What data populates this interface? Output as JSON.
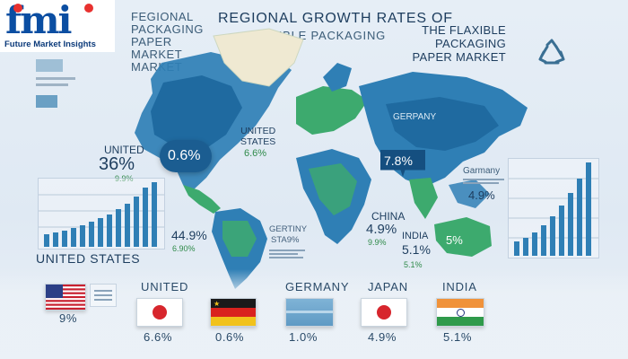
{
  "logo": {
    "mark": "fmi",
    "company": "Future Market Insights"
  },
  "headings": {
    "left": "Fegional Packaging Paper Market Market",
    "title_line1": "REGIONAL GROWTH RATES OF",
    "title_line2": "FLEXIBLE PACKAGING",
    "right": "THE FLAXIBLE PACKAGING PAPER MARKET"
  },
  "map_labels": {
    "us_bubble": "0.6%",
    "united_states_a": "UNITED",
    "united_states_b": "STATES",
    "united_states_val": "6.6%",
    "germany": "GERPANY",
    "china_bubble": "7.8%",
    "china": "CHINA",
    "china_val": "4.9%",
    "china_sub": "9.9%",
    "india": "INDIA",
    "india_val": "5.1%",
    "india_sub": "5.1%",
    "australia_bubble": "5%",
    "south_america": "GERTINY",
    "south_america_sub": "STA9%",
    "south_left_val": "44.9%",
    "south_left_sub": "6.90%"
  },
  "left_panel": {
    "label": "UNITED",
    "big": "36%",
    "small": "9.9%",
    "bottom_label": "UNITED STATES"
  },
  "right_panel": {
    "label": "Garmany",
    "val": "4.9%"
  },
  "bottom_row": [
    {
      "label": "",
      "value": "9%",
      "flag": "usa"
    },
    {
      "label": "UNITED",
      "value": "6.6%",
      "flag": "japan"
    },
    {
      "label": "",
      "value": "0.6%",
      "flag": "germany"
    },
    {
      "label": "GERMANY",
      "value": "1.0%",
      "flag": "blue"
    },
    {
      "label": "JAPAN",
      "value": "4.9%",
      "flag": "japan"
    },
    {
      "label": "INDIA",
      "value": "5.1%",
      "flag": "india"
    }
  ],
  "colors": {
    "ocean": "#dfe9f3",
    "land_blue": "#2f7fb5",
    "land_green": "#3daa6e",
    "land_cream": "#efe9d2",
    "accent_dark": "#1d3d5e"
  },
  "icons": [
    "recycle-icon"
  ]
}
